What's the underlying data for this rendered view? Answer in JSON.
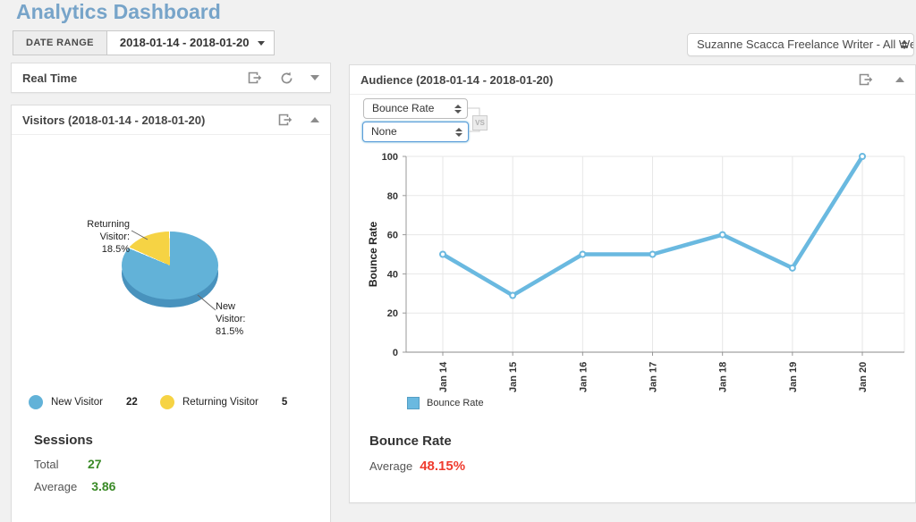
{
  "page": {
    "title": "Analytics Dashboard"
  },
  "toolbar": {
    "date_range_label": "DATE RANGE",
    "date_range_value": "2018-01-14 - 2018-01-20",
    "account_selector_value": "Suzanne Scacca Freelance Writer - All Web Site D"
  },
  "real_time": {
    "title": "Real Time"
  },
  "visitors": {
    "title": "Visitors (2018-01-14 - 2018-01-20)",
    "callout_returning": {
      "line1": "Returning",
      "line2": "Visitor:",
      "line3": "18.5%"
    },
    "callout_new": {
      "line1": "New",
      "line2": "Visitor:",
      "line3": "81.5%"
    },
    "legend": [
      {
        "label": "New Visitor",
        "value": "22"
      },
      {
        "label": "Returning Visitor",
        "value": "5"
      }
    ],
    "sessions": {
      "heading": "Sessions",
      "rows": [
        {
          "label": "Total",
          "value": "27"
        },
        {
          "label": "Average",
          "value": "3.86"
        }
      ]
    }
  },
  "audience": {
    "title": "Audience (2018-01-14 - 2018-01-20)",
    "metric_select_value": "Bounce Rate",
    "compare_select_value": "None",
    "vs_label": "VS",
    "summary_heading": "Bounce Rate",
    "average_label": "Average",
    "average_value": "48.15%"
  },
  "colors": {
    "title_blue": "#77a4c9",
    "pie_blue": "#62b2d8",
    "pie_blue_depth": "#4892bd",
    "pie_yellow": "#f6d344",
    "line_blue": "#6ab9e0",
    "green": "#3a8a27",
    "red": "#ef3c2f"
  },
  "chart_data": [
    {
      "type": "pie",
      "title": "Visitors (2018-01-14 - 2018-01-20)",
      "slices": [
        {
          "label": "New Visitor",
          "count": 22,
          "pct": 81.5,
          "color": "#62b2d8"
        },
        {
          "label": "Returning Visitor",
          "count": 5,
          "pct": 18.5,
          "color": "#f6d344"
        }
      ],
      "depth_color": "#4892bd",
      "style": "3d",
      "legend_position": "bottom"
    },
    {
      "type": "line",
      "title": "Bounce Rate",
      "x": [
        "Jan 14",
        "Jan 15",
        "Jan 16",
        "Jan 17",
        "Jan 18",
        "Jan 19",
        "Jan 20"
      ],
      "series": [
        {
          "name": "Bounce Rate",
          "values": [
            50,
            29,
            50,
            50,
            60,
            43,
            100
          ],
          "color": "#6ab9e0"
        }
      ],
      "xlabel": "",
      "ylabel": "Bounce Rate",
      "ylim": [
        0,
        100
      ],
      "yticks": [
        0,
        20,
        40,
        60,
        80,
        100
      ],
      "grid": true,
      "legend_position": "bottom-left",
      "x_label_rotation": -90
    }
  ]
}
